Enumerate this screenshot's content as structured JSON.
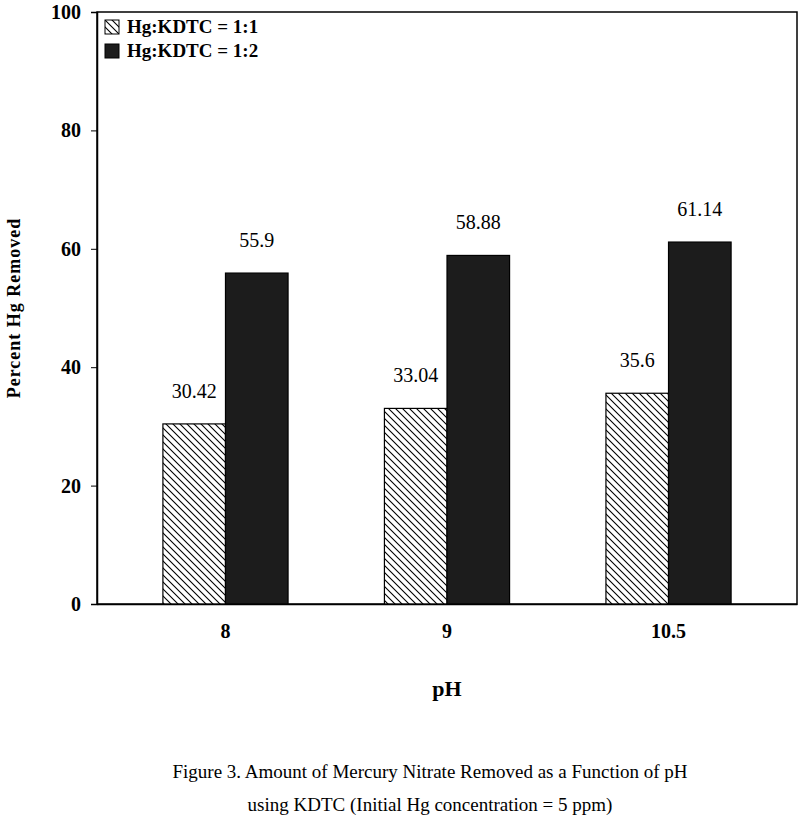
{
  "chart_data": {
    "type": "bar",
    "title": "Figure 3. Amount of Mercury Nitrate Removed as a Function of pH using KDTC (Initial Hg concentration = 5 ppm)",
    "x_label": "pH",
    "y_label": "Percent Hg Removed",
    "categories": [
      "8",
      "9",
      "10.5"
    ],
    "series": [
      {
        "name": "Hg:KDTC = 1:1",
        "color": "#000000",
        "values": [
          30.42,
          33.04,
          35.6
        ]
      },
      {
        "name": "Hg:KDTC = 1:2",
        "color": "#1c1c1c",
        "values": [
          55.9,
          58.88,
          61.14
        ]
      }
    ],
    "ylim": [
      0,
      100
    ],
    "yticks": [
      0,
      20,
      40,
      60,
      80,
      100
    ],
    "grid": false,
    "legend": "upper left",
    "data_labels": true
  }
}
